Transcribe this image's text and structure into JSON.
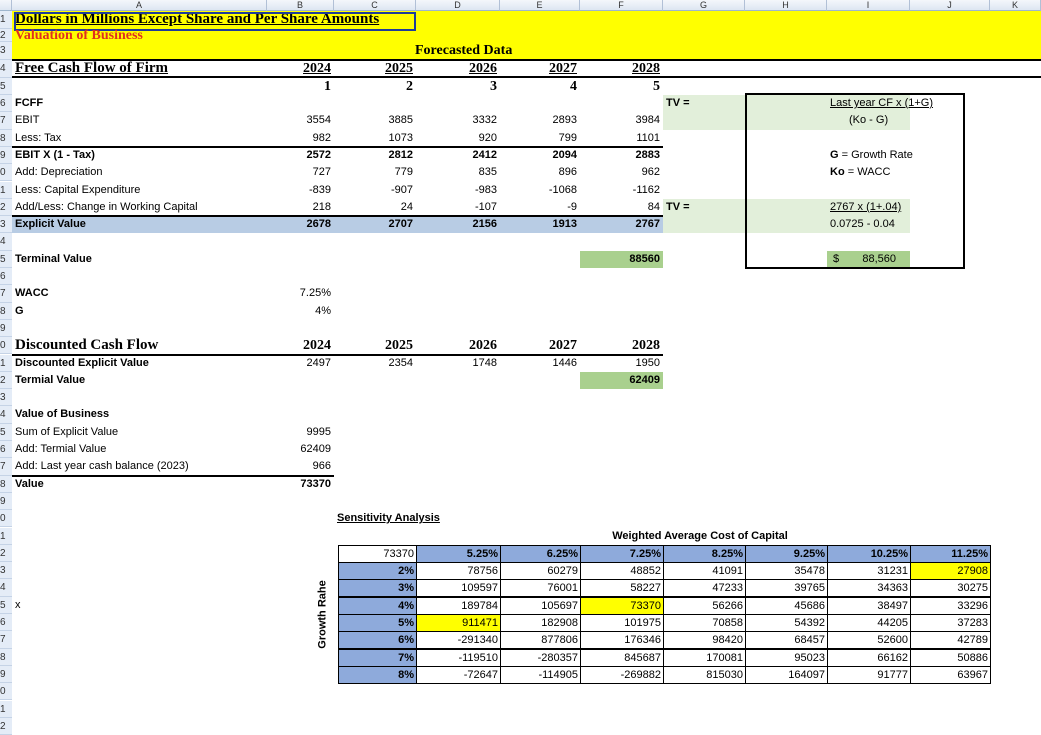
{
  "columns": [
    "A",
    "B",
    "C",
    "D",
    "E",
    "F",
    "G",
    "H",
    "I",
    "J",
    "K"
  ],
  "header": {
    "title": "Dollars in Millions Except Share and Per Share Amounts",
    "subtitle": "Valuation of Business",
    "forecast_label": "Forecasted Data"
  },
  "fcff": {
    "title": "Free Cash Flow of Firm",
    "years": [
      "2024",
      "2025",
      "2026",
      "2027",
      "2028"
    ],
    "periods": [
      "1",
      "2",
      "3",
      "4",
      "5"
    ],
    "section": "FCFF",
    "rows": [
      {
        "label": "EBIT",
        "values": [
          "3554",
          "3885",
          "3332",
          "2893",
          "3984"
        ]
      },
      {
        "label": "Less: Tax",
        "values": [
          "982",
          "1073",
          "920",
          "799",
          "1101"
        ]
      },
      {
        "label": "EBIT X (1 - Tax)",
        "values": [
          "2572",
          "2812",
          "2412",
          "2094",
          "2883"
        ]
      },
      {
        "label": "Add: Depreciation",
        "values": [
          "727",
          "779",
          "835",
          "896",
          "962"
        ]
      },
      {
        "label": "Less: Capital Expenditure",
        "values": [
          "-839",
          "-907",
          "-983",
          "-1068",
          "-1162"
        ]
      },
      {
        "label": "Add/Less: Change in Working Capital",
        "values": [
          "218",
          "24",
          "-107",
          "-9",
          "84"
        ]
      },
      {
        "label": "Explicit Value",
        "values": [
          "2678",
          "2707",
          "2156",
          "1913",
          "2767"
        ]
      }
    ],
    "terminal_label": "Terminal Value",
    "terminal_value": "88560"
  },
  "assumptions": {
    "wacc_label": "WACC",
    "wacc": "7.25%",
    "g_label": "G",
    "g": "4%"
  },
  "dcf": {
    "title": "Discounted Cash Flow",
    "years": [
      "2024",
      "2025",
      "2026",
      "2027",
      "2028"
    ],
    "explicit_label": "Discounted Explicit Value",
    "explicit_values": [
      "2497",
      "2354",
      "1748",
      "1446",
      "1950"
    ],
    "terminal_label": "Termial Value",
    "terminal_value": "62409"
  },
  "value": {
    "title": "Value of Business",
    "rows": [
      {
        "label": "Sum of Explicit Value",
        "value": "9995"
      },
      {
        "label": "Add: Termial Value",
        "value": "62409"
      },
      {
        "label": "Add: Last year cash balance (2023)",
        "value": "966"
      }
    ],
    "total_label": "Value",
    "total": "73370"
  },
  "stray": "x",
  "tv_box": {
    "tv1": "TV =",
    "formula_num": "Last year CF x (1+G)",
    "formula_den": "(Ko - G)",
    "g_key": "G",
    "g_def": "= Growth Rate",
    "ko_key": "Ko",
    "ko_def": "= WACC",
    "tv2": "TV =",
    "calc_num": "2767 x (1+.04)",
    "calc_den": "0.0725 - 0.04",
    "currency": "$",
    "result": "88,560"
  },
  "sensitivity": {
    "title": "Sensitivity Analysis",
    "col_title": "Weighted Average Cost of Capital",
    "row_title": "Growth Rahe",
    "corner": "73370",
    "wacc": [
      "5.25%",
      "6.25%",
      "7.25%",
      "8.25%",
      "9.25%",
      "10.25%",
      "11.25%"
    ],
    "growth": [
      "2%",
      "3%",
      "4%",
      "5%",
      "6%",
      "7%",
      "8%"
    ],
    "values": [
      [
        "78756",
        "60279",
        "48852",
        "41091",
        "35478",
        "31231",
        "27908"
      ],
      [
        "109597",
        "76001",
        "58227",
        "47233",
        "39765",
        "34363",
        "30275"
      ],
      [
        "189784",
        "105697",
        "73370",
        "56266",
        "45686",
        "38497",
        "33296"
      ],
      [
        "911471",
        "182908",
        "101975",
        "70858",
        "54392",
        "44205",
        "37283"
      ],
      [
        "-291340",
        "877806",
        "176346",
        "98420",
        "68457",
        "52600",
        "42789"
      ],
      [
        "-119510",
        "-280357",
        "845687",
        "170081",
        "95023",
        "66162",
        "50886"
      ],
      [
        "-72647",
        "-114905",
        "-269882",
        "815030",
        "164097",
        "91777",
        "63967"
      ]
    ],
    "highlight_color": "#ffff00",
    "header_color": "#8eaadb"
  },
  "colors": {
    "banner": "#ffff00",
    "title_red": "#e0301e",
    "explicit_fill": "#b8cce4",
    "green_fill": "#a9d08e",
    "light_green": "#e2efda"
  }
}
